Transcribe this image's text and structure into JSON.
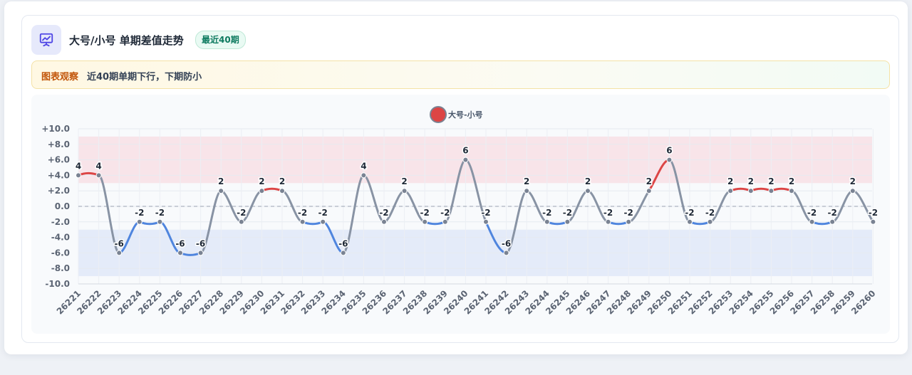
{
  "header": {
    "title": "大号/小号 单期差值走势",
    "badge": "最近40期"
  },
  "insight": {
    "label": "图表观察",
    "text": "近40期单期下行，下期防小"
  },
  "colors": {
    "up": "#dc4545",
    "down": "#4f85de",
    "neutral": "#8893a4",
    "marker": "#7a8393",
    "band_high": "#f7dfe3",
    "band_low": "#dfe7f8",
    "icon": "#4f46e5"
  },
  "chart_data": {
    "type": "line",
    "legend": {
      "label": "大号-小号",
      "color": "#dc4545",
      "position": "top-center"
    },
    "ylim": [
      -10,
      10
    ],
    "ytick_labels": [
      "+10.0",
      "+8.0",
      "+6.0",
      "+4.0",
      "+2.0",
      "0.0",
      "-2.0",
      "-4.0",
      "-6.0",
      "-8.0",
      "-10.0"
    ],
    "ytick_values": [
      10,
      8,
      6,
      4,
      2,
      0,
      -2,
      -4,
      -6,
      -8,
      -10
    ],
    "bands": [
      {
        "from": 3,
        "to": 9,
        "tone": "high"
      },
      {
        "from": -9,
        "to": -3,
        "tone": "low"
      }
    ],
    "zero_line": true,
    "grid": true,
    "categories": [
      "26221",
      "26222",
      "26223",
      "26224",
      "26225",
      "26226",
      "26227",
      "26228",
      "26229",
      "26230",
      "26231",
      "26232",
      "26233",
      "26234",
      "26235",
      "26236",
      "26237",
      "26238",
      "26239",
      "26240",
      "26241",
      "26242",
      "26243",
      "26244",
      "26245",
      "26246",
      "26247",
      "26248",
      "26249",
      "26250",
      "26251",
      "26252",
      "26253",
      "26254",
      "26255",
      "26256",
      "26257",
      "26258",
      "26259",
      "26260"
    ],
    "series": [
      {
        "name": "大号-小号",
        "values": [
          4,
          4,
          -6,
          -2,
          -2,
          -6,
          -6,
          2,
          -2,
          2,
          2,
          -2,
          -2,
          -6,
          4,
          -2,
          2,
          -2,
          -2,
          6,
          -2,
          -6,
          2,
          -2,
          -2,
          2,
          -2,
          -2,
          2,
          6,
          -2,
          -2,
          2,
          2,
          2,
          2,
          -2,
          -2,
          2,
          -2
        ],
        "data_labels": [
          "4",
          "4",
          "-6",
          "-2",
          "-2",
          "-6",
          "-6",
          "2",
          "-2",
          "2",
          "2",
          "-2",
          "-2",
          "-6",
          "4",
          "-2",
          "2",
          "-2",
          "-2",
          "6",
          "-2",
          "-6",
          "2",
          "-2",
          "-2",
          "2",
          "-2",
          "-2",
          "2",
          "6",
          "-2",
          "-2",
          "2",
          "2",
          "2",
          "2",
          "-2",
          "-2",
          "2",
          "-2"
        ]
      }
    ]
  }
}
